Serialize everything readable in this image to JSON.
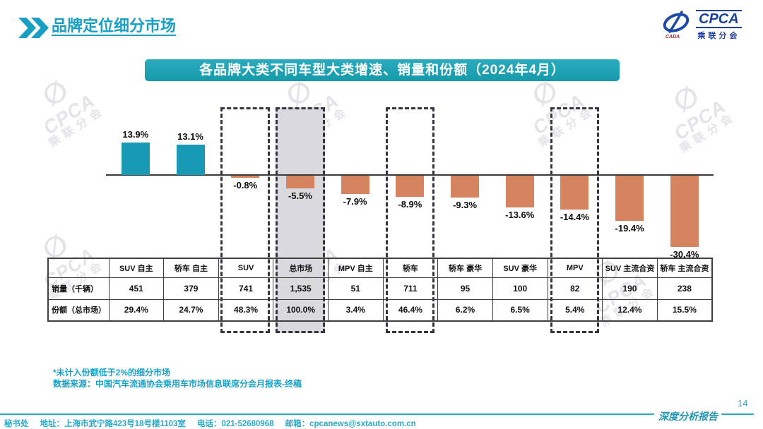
{
  "header": {
    "title": "品牌定位细分市场",
    "logo": {
      "name": "CPCA",
      "subname": "乘联分会",
      "emblem_caption": "CADA"
    }
  },
  "banner_title": "各品牌大类不同车型大类增速、销量和份额（2024年4月）",
  "chart_data": {
    "type": "bar",
    "title": "各品牌大类不同车型大类增速、销量和份额（2024年4月）",
    "unit": "%",
    "categories": [
      "SUV 自主",
      "轿车 自主",
      "SUV",
      "总市场",
      "MPV 自主",
      "轿车",
      "轿车 豪华",
      "SUV 豪华",
      "MPV",
      "SUV 主流合资",
      "轿车 主流合资"
    ],
    "values": [
      13.9,
      13.1,
      -0.8,
      -5.5,
      -7.9,
      -8.9,
      -9.3,
      -13.6,
      -14.4,
      -19.4,
      -30.4
    ],
    "bar_labels": [
      "13.9%",
      "13.1%",
      "-0.8%",
      "-5.5%",
      "-7.9%",
      "-8.9%",
      "-9.3%",
      "-13.6%",
      "-14.4%",
      "-19.4%",
      "-30.4%"
    ],
    "positive_color": "#1899b6",
    "negative_color": "#d6845f",
    "highlight_boxes": [
      {
        "category": "SUV",
        "index": 2,
        "filled": false
      },
      {
        "category": "总市场",
        "index": 3,
        "filled": true
      },
      {
        "category": "轿车",
        "index": 5,
        "filled": false
      },
      {
        "category": "MPV",
        "index": 8,
        "filled": false
      }
    ],
    "ylim": [
      -35,
      18
    ],
    "grid": false,
    "legend": false,
    "table_rows": [
      {
        "label": "销量（千辆）",
        "values": [
          "451",
          "379",
          "741",
          "1,535",
          "51",
          "711",
          "95",
          "100",
          "82",
          "190",
          "238"
        ]
      },
      {
        "label": "份额（总市场）",
        "values": [
          "29.4%",
          "24.7%",
          "48.3%",
          "100.0%",
          "3.4%",
          "46.4%",
          "6.2%",
          "6.5%",
          "5.4%",
          "12.4%",
          "15.5%"
        ]
      }
    ]
  },
  "footnotes": [
    "*未计入份额低于2%的细分市场",
    "数据来源：中国汽车流通协会乘用车市场信息联席分会月报表-终稿"
  ],
  "footer": {
    "secretariat": "秘书处",
    "address": "地址：上海市武宁路423号18号楼1103室",
    "phone": "电话：021-52680968",
    "email": "邮箱：cpcanews@sxtauto.com.cn",
    "report_label": "深度分析报告",
    "page_number": "14"
  },
  "watermark": {
    "glyph": "∅",
    "line1": "CPCA",
    "line2": "乘联分会"
  },
  "colors": {
    "teal": "#1899b6",
    "orange": "#d6845f",
    "banner": "#1799ac",
    "accent_text": "#189fc2"
  }
}
